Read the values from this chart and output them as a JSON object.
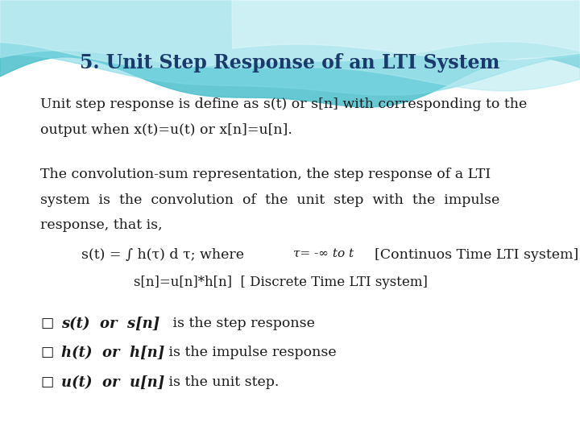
{
  "title": "5. Unit Step Response of an LTI System",
  "title_color": "#1a3a6b",
  "title_fontsize": 17,
  "bg_color": "#ffffff",
  "text_color": "#1a1a1a",
  "body_fontsize": 12.5,
  "line1": "Unit step response is define as s(t) or s[n] with corresponding to the",
  "line2": "output when x(t)=u(t) or x[n]=u[n].",
  "line3": "The convolution-sum representation, the step response of a LTI",
  "line4": "system  is  the  convolution  of  the  unit  step  with  the  impulse",
  "line5": "response, that is,",
  "eq2": "s[n]=u[n]*h[n]  [ Discrete Time LTI system]",
  "bullet1_bold": "s(t)  or  s[n] ",
  "bullet1_rest": " is the step response",
  "bullet2_bold": "h(t)  or  h[n]",
  "bullet2_rest": " is the impulse response",
  "bullet3_bold": "u(t)  or  u[n]",
  "bullet3_rest": " is the unit step."
}
